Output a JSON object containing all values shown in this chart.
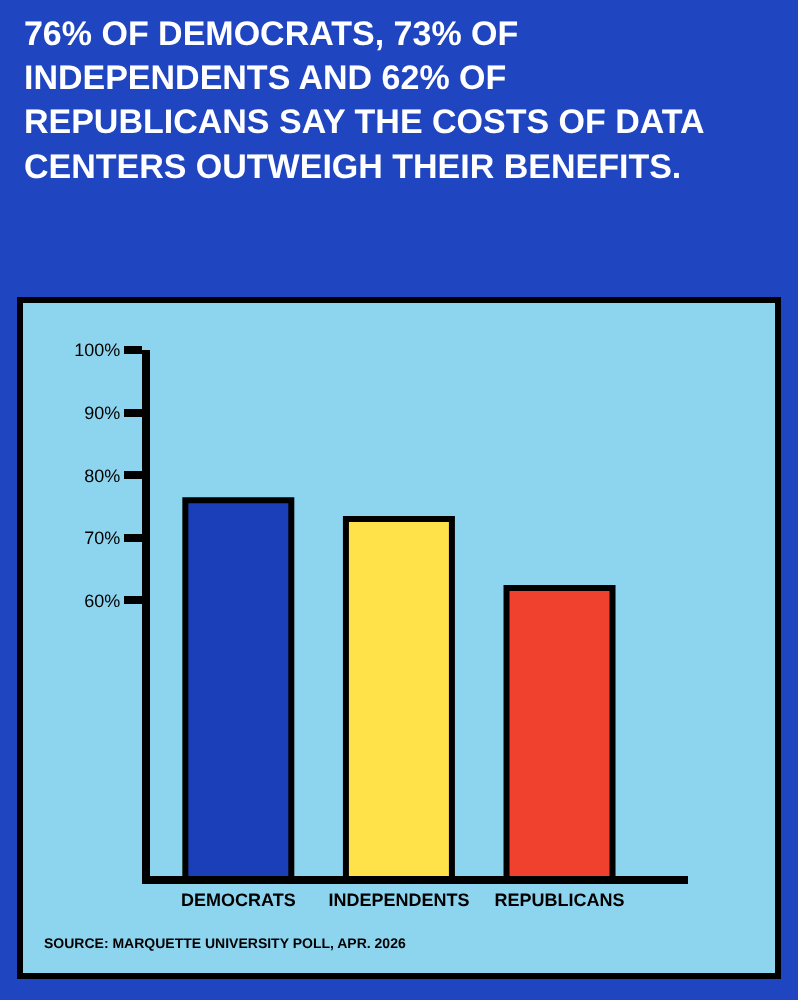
{
  "chart_data": {
    "type": "bar",
    "title": "76% OF DEMOCRATS, 73% OF INDEPENDENTS AND 62% OF REPUBLICANS SAY THE COSTS OF DATA CENTERS OUTWEIGH THEIR BENEFITS.",
    "categories": [
      "DEMOCRATS",
      "INDEPENDENTS",
      "REPUBLICANS"
    ],
    "values": [
      76,
      73,
      62
    ],
    "colors": [
      "#1a3fb8",
      "#ffe14a",
      "#f0412f"
    ],
    "ylim": [
      16,
      100
    ],
    "yticks": [
      {
        "value": 60,
        "label": "60%"
      },
      {
        "value": 70,
        "label": "70%"
      },
      {
        "value": 80,
        "label": "80%"
      },
      {
        "value": 90,
        "label": "90%"
      },
      {
        "value": 100,
        "label": "100%"
      }
    ],
    "grid": false,
    "annotations": [
      "SOURCE: MARQUETTE UNIVERSITY POLL, APR. 2026"
    ]
  }
}
